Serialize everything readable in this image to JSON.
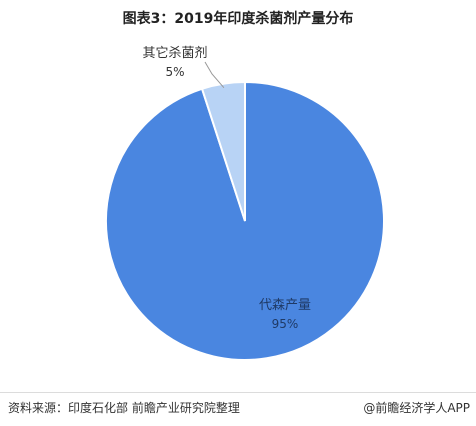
{
  "chart_data": {
    "type": "pie",
    "title": "图表3：2019年印度杀菌剂产量分布",
    "slices": [
      {
        "label": "代森产量",
        "value": 95,
        "value_label": "95%",
        "color": "#4a86e0"
      },
      {
        "label": "其它杀菌剂",
        "value": 5,
        "value_label": "5%",
        "color": "#b8d3f5"
      }
    ],
    "legend": "none"
  },
  "footer": {
    "source": "资料来源：印度石化部 前瞻产业研究院整理",
    "brand": "@前瞻经济学人APP"
  }
}
